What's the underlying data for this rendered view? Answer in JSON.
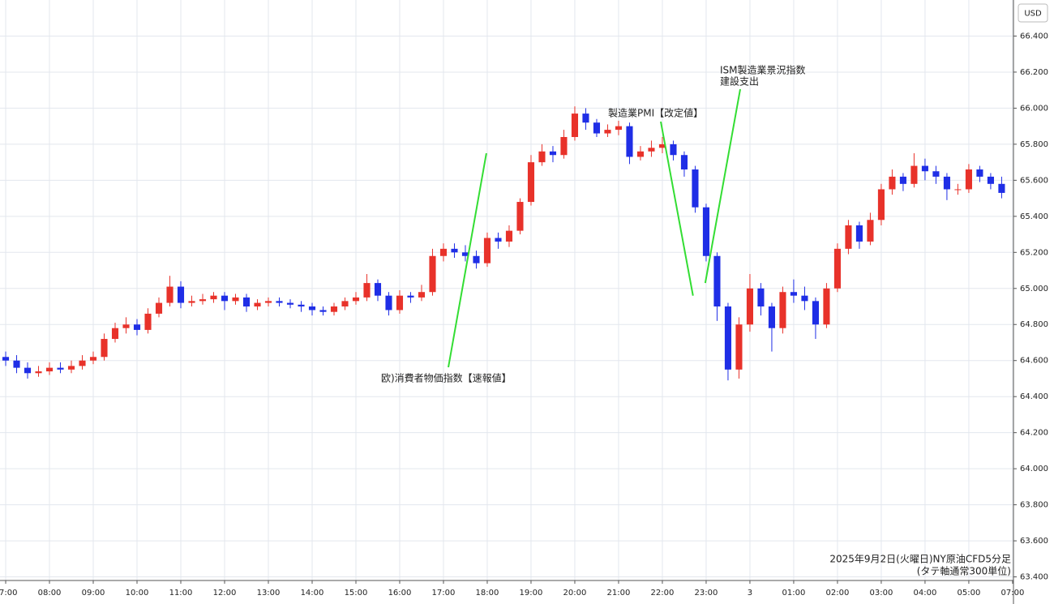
{
  "chart_data": {
    "type": "candlestick",
    "currency": "USD",
    "footer": [
      "2025年9月2日(火曜日)NY原油CFD5分足",
      "(タテ軸通常300単位)"
    ],
    "up_color": "#e8322a",
    "down_color": "#1f2ee6",
    "grid": true,
    "xlim": [
      -0.13,
      23.02
    ],
    "ylim": [
      63.38,
      66.6
    ],
    "xticks": [
      {
        "value": 0,
        "label": "07:00"
      },
      {
        "value": 1,
        "label": "08:00"
      },
      {
        "value": 2,
        "label": "09:00"
      },
      {
        "value": 3,
        "label": "10:00"
      },
      {
        "value": 4,
        "label": "11:00"
      },
      {
        "value": 5,
        "label": "12:00"
      },
      {
        "value": 6,
        "label": "13:00"
      },
      {
        "value": 7,
        "label": "14:00"
      },
      {
        "value": 8,
        "label": "15:00"
      },
      {
        "value": 9,
        "label": "16:00"
      },
      {
        "value": 10,
        "label": "17:00"
      },
      {
        "value": 11,
        "label": "18:00"
      },
      {
        "value": 12,
        "label": "19:00"
      },
      {
        "value": 13,
        "label": "20:00"
      },
      {
        "value": 14,
        "label": "21:00"
      },
      {
        "value": 15,
        "label": "22:00"
      },
      {
        "value": 16,
        "label": "23:00"
      },
      {
        "value": 17,
        "label": "3"
      },
      {
        "value": 18,
        "label": "01:00"
      },
      {
        "value": 19,
        "label": "02:00"
      },
      {
        "value": 20,
        "label": "03:00"
      },
      {
        "value": 21,
        "label": "04:00"
      },
      {
        "value": 22,
        "label": "05:00"
      },
      {
        "value": 23,
        "label": "07:00"
      }
    ],
    "yticks": [
      {
        "value": 63.4,
        "label": "63.400"
      },
      {
        "value": 63.6,
        "label": "63.600"
      },
      {
        "value": 63.8,
        "label": "63.800"
      },
      {
        "value": 64.0,
        "label": "64.000"
      },
      {
        "value": 64.2,
        "label": "64.200"
      },
      {
        "value": 64.4,
        "label": "64.400"
      },
      {
        "value": 64.6,
        "label": "64.600"
      },
      {
        "value": 64.8,
        "label": "64.800"
      },
      {
        "value": 65.0,
        "label": "65.000"
      },
      {
        "value": 65.2,
        "label": "65.200"
      },
      {
        "value": 65.4,
        "label": "65.400"
      },
      {
        "value": 65.6,
        "label": "65.600"
      },
      {
        "value": 65.8,
        "label": "65.800"
      },
      {
        "value": 66.0,
        "label": "66.000"
      },
      {
        "value": 66.2,
        "label": "66.200"
      },
      {
        "value": 66.4,
        "label": "66.400"
      }
    ],
    "x": [
      0,
      0.25,
      0.5,
      0.75,
      1,
      1.25,
      1.5,
      1.75,
      2,
      2.25,
      2.5,
      2.75,
      3,
      3.25,
      3.5,
      3.75,
      4,
      4.25,
      4.5,
      4.75,
      5,
      5.25,
      5.5,
      5.75,
      6,
      6.25,
      6.5,
      6.75,
      7,
      7.25,
      7.5,
      7.75,
      8,
      8.25,
      8.5,
      8.75,
      9,
      9.25,
      9.5,
      9.75,
      10,
      10.25,
      10.5,
      10.75,
      11,
      11.25,
      11.5,
      11.75,
      12,
      12.25,
      12.5,
      12.75,
      13,
      13.25,
      13.5,
      13.75,
      14,
      14.25,
      14.5,
      14.75,
      15,
      15.25,
      15.5,
      15.75,
      16,
      16.25,
      16.5,
      16.75,
      17,
      17.25,
      17.5,
      17.75,
      18,
      18.25,
      18.5,
      18.75,
      19,
      19.25,
      19.5,
      19.75,
      20,
      20.25,
      20.5,
      20.75,
      21,
      21.25,
      21.5,
      21.75,
      22,
      22.25,
      22.5,
      22.75
    ],
    "open": [
      64.62,
      64.6,
      64.56,
      64.53,
      64.54,
      64.56,
      64.55,
      64.57,
      64.6,
      64.62,
      64.72,
      64.78,
      64.8,
      64.77,
      64.86,
      64.92,
      65.01,
      64.92,
      64.93,
      64.94,
      64.96,
      64.93,
      64.95,
      64.9,
      64.92,
      64.93,
      64.92,
      64.91,
      64.9,
      64.88,
      64.87,
      64.9,
      64.93,
      64.95,
      65.03,
      64.96,
      64.88,
      64.96,
      64.95,
      64.98,
      65.18,
      65.22,
      65.2,
      65.18,
      65.14,
      65.28,
      65.26,
      65.32,
      65.48,
      65.7,
      65.76,
      65.74,
      65.84,
      65.97,
      65.92,
      65.86,
      65.88,
      65.9,
      65.73,
      65.76,
      65.78,
      65.8,
      65.74,
      65.66,
      65.45,
      65.18,
      64.9,
      64.55,
      64.8,
      65.0,
      64.9,
      64.78,
      64.98,
      64.96,
      64.93,
      64.8,
      65.0,
      65.22,
      65.35,
      65.26,
      65.38,
      65.55,
      65.62,
      65.58,
      65.68,
      65.65,
      65.62,
      65.55,
      65.55,
      65.66,
      65.62,
      65.58
    ],
    "high": [
      64.65,
      64.63,
      64.59,
      64.57,
      64.59,
      64.59,
      64.6,
      64.63,
      64.65,
      64.75,
      64.81,
      64.84,
      64.83,
      64.89,
      64.95,
      65.07,
      65.04,
      64.96,
      64.97,
      64.98,
      64.98,
      64.97,
      64.97,
      64.94,
      64.95,
      64.95,
      64.94,
      64.93,
      64.92,
      64.9,
      64.92,
      64.95,
      64.98,
      65.08,
      65.05,
      64.98,
      64.99,
      64.98,
      65.02,
      65.22,
      65.25,
      65.25,
      65.24,
      65.21,
      65.31,
      65.31,
      65.35,
      65.5,
      65.74,
      65.8,
      65.79,
      65.88,
      66.01,
      66.0,
      65.94,
      65.91,
      65.93,
      65.92,
      65.79,
      65.82,
      65.84,
      65.82,
      65.76,
      65.68,
      65.47,
      65.2,
      64.92,
      64.84,
      65.08,
      65.03,
      64.92,
      65.01,
      65.05,
      65.01,
      64.95,
      65.03,
      65.25,
      65.38,
      65.37,
      65.42,
      65.58,
      65.66,
      65.64,
      65.75,
      65.72,
      65.68,
      65.64,
      65.58,
      65.69,
      65.68,
      65.64,
      65.62
    ],
    "low": [
      64.57,
      64.53,
      64.5,
      64.51,
      64.52,
      64.53,
      64.53,
      64.55,
      64.58,
      64.6,
      64.7,
      64.75,
      64.74,
      64.75,
      64.84,
      64.9,
      64.89,
      64.9,
      64.91,
      64.92,
      64.88,
      64.91,
      64.87,
      64.88,
      64.9,
      64.9,
      64.89,
      64.87,
      64.85,
      64.85,
      64.85,
      64.88,
      64.91,
      64.93,
      64.93,
      64.85,
      64.86,
      64.92,
      64.93,
      64.96,
      65.15,
      65.17,
      65.15,
      65.11,
      65.12,
      65.22,
      65.23,
      65.3,
      65.46,
      65.68,
      65.7,
      65.72,
      65.82,
      65.88,
      65.84,
      65.84,
      65.85,
      65.69,
      65.71,
      65.73,
      65.75,
      65.71,
      65.62,
      65.42,
      65.15,
      64.82,
      64.49,
      64.5,
      64.76,
      64.85,
      64.65,
      64.75,
      64.92,
      64.88,
      64.72,
      64.78,
      64.98,
      65.19,
      65.22,
      65.24,
      65.35,
      65.52,
      65.54,
      65.56,
      65.6,
      65.58,
      65.49,
      65.52,
      65.53,
      65.59,
      65.55,
      65.5
    ],
    "close": [
      64.6,
      64.56,
      64.53,
      64.54,
      64.56,
      64.55,
      64.57,
      64.6,
      64.62,
      64.72,
      64.78,
      64.8,
      64.77,
      64.86,
      64.92,
      65.01,
      64.92,
      64.93,
      64.94,
      64.96,
      64.93,
      64.95,
      64.9,
      64.92,
      64.93,
      64.92,
      64.91,
      64.9,
      64.88,
      64.87,
      64.9,
      64.93,
      64.95,
      65.03,
      64.96,
      64.88,
      64.96,
      64.95,
      64.98,
      65.18,
      65.22,
      65.2,
      65.18,
      65.14,
      65.28,
      65.26,
      65.32,
      65.48,
      65.7,
      65.76,
      65.74,
      65.84,
      65.97,
      65.92,
      65.86,
      65.88,
      65.9,
      65.73,
      65.76,
      65.78,
      65.8,
      65.74,
      65.66,
      65.45,
      65.18,
      64.9,
      64.55,
      64.8,
      65.0,
      64.9,
      64.78,
      64.98,
      64.96,
      64.93,
      64.8,
      65.0,
      65.22,
      65.35,
      65.26,
      65.38,
      65.55,
      65.62,
      65.58,
      65.68,
      65.65,
      65.62,
      65.55,
      65.55,
      65.66,
      65.62,
      65.58,
      65.53
    ],
    "annotations": [
      {
        "lines": [
          "欧)消費者物価指数【速報値】"
        ],
        "at": [
          10.98,
          65.75
        ],
        "color": "#33dd33"
      },
      {
        "lines": [
          "製造業PMI【改定値】"
        ],
        "at": [
          15.7,
          64.96
        ],
        "color": "#33dd33"
      },
      {
        "lines": [
          "ISM製造業景況指数",
          "建設支出"
        ],
        "at": [
          15.98,
          65.03
        ],
        "color": "#33dd33"
      }
    ]
  }
}
